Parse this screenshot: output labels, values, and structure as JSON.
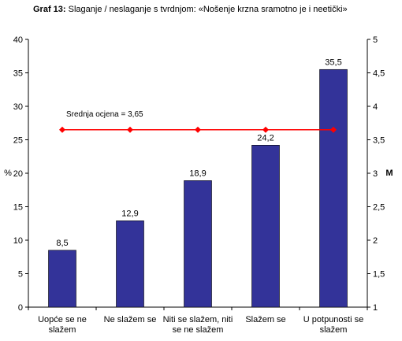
{
  "title_prefix": "Graf 13:",
  "title_text": "Slaganje / neslaganje s tvrdnjom: «Nošenje krzna sramotno je i neetički»",
  "chart_data": {
    "type": "bar",
    "categories": [
      [
        "Uopće se ne",
        "slažem"
      ],
      [
        "Ne slažem se"
      ],
      [
        "Niti se slažem, niti",
        "se ne slažem"
      ],
      [
        "Slažem se"
      ],
      [
        "U potpunosti se",
        "slažem"
      ]
    ],
    "values": [
      8.5,
      12.9,
      18.9,
      24.2,
      35.5
    ],
    "value_labels": [
      "8,5",
      "12,9",
      "18,9",
      "24,2",
      "35,5"
    ],
    "ylabel": "%",
    "ylim": [
      0,
      40
    ],
    "y_ticks": [
      "0",
      "5",
      "10",
      "15",
      "20",
      "25",
      "30",
      "35",
      "40"
    ],
    "y2label": "M",
    "y2lim": [
      1,
      5
    ],
    "y2_ticks": [
      "1",
      "1,5",
      "2",
      "2,5",
      "3",
      "3,5",
      "4",
      "4,5",
      "5"
    ],
    "mean_line": {
      "value": 3.65,
      "label": "Srednja ocjena = 3,65"
    },
    "colors": {
      "bar": "#333399",
      "mean_line": "#ff0000",
      "axis": "#000000"
    },
    "grid": false
  }
}
